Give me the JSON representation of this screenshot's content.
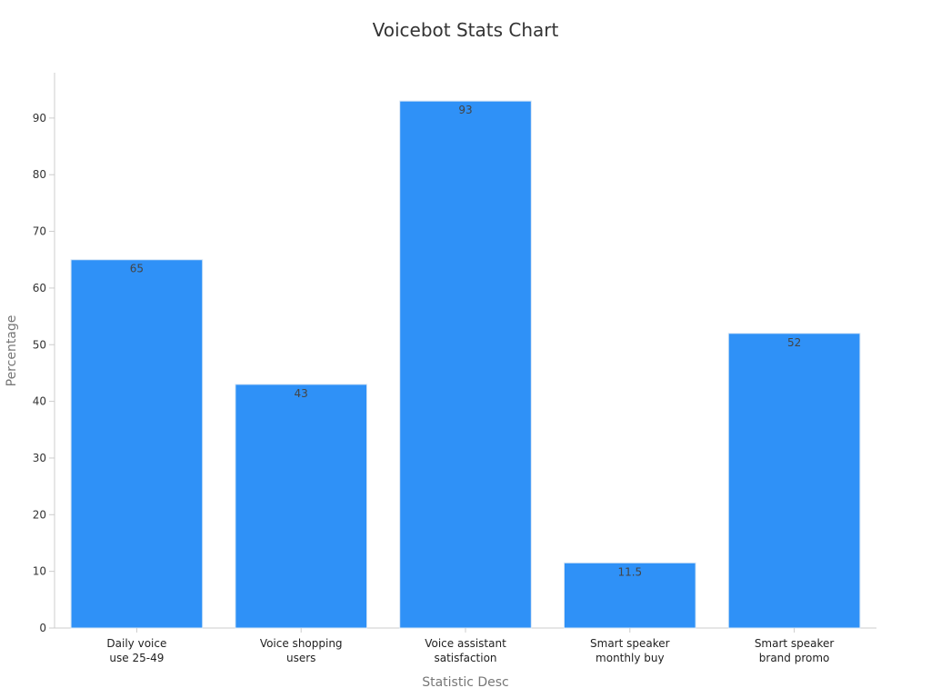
{
  "chart_data": {
    "type": "bar",
    "title": "Voicebot Stats Chart",
    "xlabel": "Statistic Desc",
    "ylabel": "Percentage",
    "categories": [
      [
        "Daily voice",
        "use 25-49"
      ],
      [
        "Voice shopping",
        "users"
      ],
      [
        "Voice assistant",
        "satisfaction"
      ],
      [
        "Smart speaker",
        "monthly buy"
      ],
      [
        "Smart speaker",
        "brand promo"
      ]
    ],
    "values": [
      65,
      43,
      93,
      11.5,
      52
    ],
    "value_labels": [
      "65",
      "43",
      "93",
      "11.5",
      "52"
    ],
    "ylim": [
      0,
      98
    ],
    "yticks": [
      0,
      10,
      20,
      30,
      40,
      50,
      60,
      70,
      80,
      90
    ],
    "grid": false,
    "legend": "none",
    "colors": {
      "bar_fill": "#2f91f7",
      "bar_stroke": "#d7e6f5",
      "axis": "#cccccc",
      "title": "#333333"
    }
  }
}
